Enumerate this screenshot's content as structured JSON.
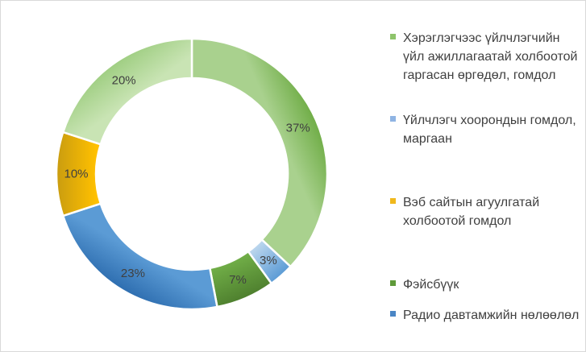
{
  "chart_data": {
    "type": "pie",
    "variant": "donut",
    "categories": [
      "Хэрэглэгчээс үйлчлэгчийн үйл ажиллагаатай холбоотой гаргасан өргөдөл, гомдол",
      "Үйлчлэгч хоорондын гомдол, маргаан",
      "Вэб сайтын агуулгатай холбоотой гомдол",
      "Фэйсбүүк",
      "Радио давтамжийн нөлөөлөл"
    ],
    "slices": [
      {
        "label": "Хэрэглэгчээс үйлчлэгчийн үйл ажиллагаатай холбоотой гаргасан өргөдөл, гомдол",
        "value": 37,
        "value_label": "37%",
        "color": "#8ec46b",
        "color_dark": "#70ad47",
        "color_light": "#a9d18e"
      },
      {
        "label": "Үйлчлэгч хоорондын гомдол, маргаан",
        "value": 3,
        "value_label": "3%",
        "color": "#8fb4e3",
        "color_dark": "#5b9bd5",
        "color_light": "#bdd7ee"
      },
      {
        "label": "Фэйсбүүк",
        "value": 7,
        "value_label": "7%",
        "color": "#5f9a3a",
        "color_dark": "#4e7f2e",
        "color_light": "#70ad47"
      },
      {
        "label": "Радио давтамжийн нөлөөлөл",
        "value": 23,
        "value_label": "23%",
        "color": "#4a86c5",
        "color_dark": "#2e6eb0",
        "color_light": "#5b9bd5"
      },
      {
        "label": "Вэб сайтын агуулгатай холбоотой гомдол",
        "value": 10,
        "value_label": "10%",
        "color": "#f0b81c",
        "color_dark": "#c99c10",
        "color_light": "#ffc000"
      },
      {
        "label": "",
        "value": 20,
        "value_label": "20%",
        "color": "#b5d99a",
        "color_dark": "#9fce82",
        "color_light": "#c9e4b4"
      }
    ],
    "legend": {
      "position": "right",
      "entries": [
        {
          "text": "Хэрэглэгчээс үйлчлэгчийн үйл ажиллагаатай холбоотой гаргасан өргөдөл, гомдол",
          "color": "#8ec46b"
        },
        {
          "text": "Үйлчлэгч хоорондын гомдол, маргаан",
          "color": "#8fb4e3"
        },
        {
          "text": "Вэб сайтын агуулгатай холбоотой гомдол",
          "color": "#f0b81c"
        },
        {
          "text": "Фэйсбүүк",
          "color": "#5f9a3a"
        },
        {
          "text": "Радио давтамжийн нөлөөлөл",
          "color": "#4a86c5"
        }
      ]
    }
  }
}
